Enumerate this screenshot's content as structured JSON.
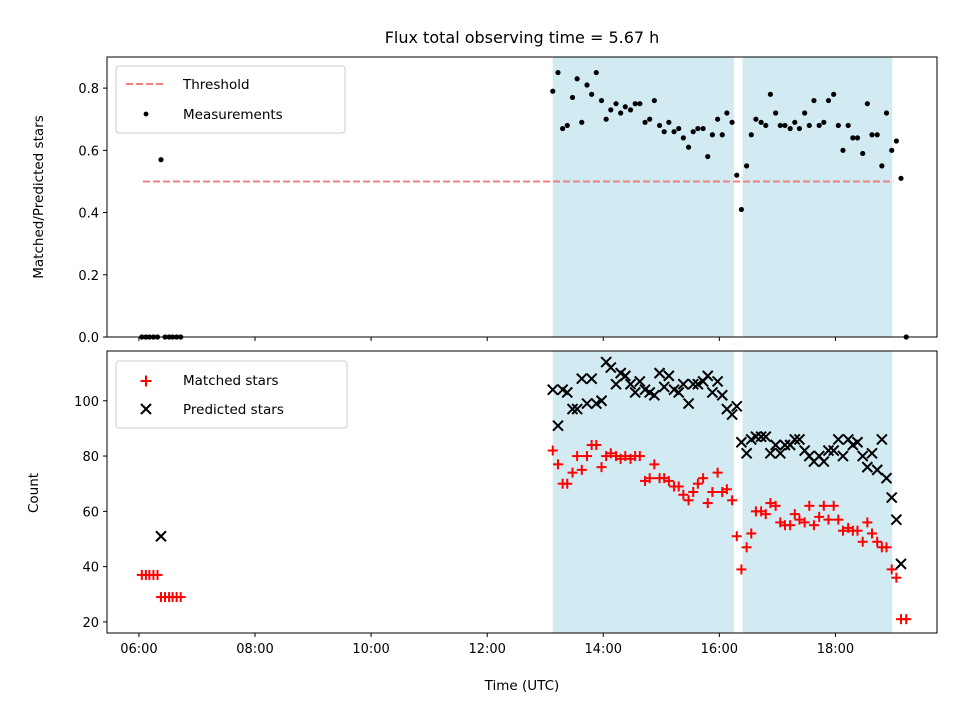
{
  "chart_data": [
    {
      "type": "scatter",
      "title": "Flux total observing time = 5.67 h",
      "xlabel": "",
      "ylabel": "Matched/Predicted stars",
      "xlim": [
        5.45,
        19.75
      ],
      "ylim": [
        0.0,
        0.9
      ],
      "x_ticks": [
        6,
        8,
        10,
        12,
        14,
        16,
        18
      ],
      "y_ticks": [
        0.0,
        0.2,
        0.4,
        0.6,
        0.8
      ],
      "y_tick_labels": [
        "0.0",
        "0.2",
        "0.4",
        "0.6",
        "0.8"
      ],
      "grid": false,
      "legend_position": "upper left",
      "shaded_intervals": [
        [
          13.13,
          16.25
        ],
        [
          16.4,
          18.98
        ]
      ],
      "shade_color": "#add8e6",
      "threshold": {
        "name": "Threshold",
        "value": 0.5,
        "x_range": [
          6.07,
          19.0
        ],
        "color": "#f08080"
      },
      "series": [
        {
          "name": "Measurements",
          "color": "#000000",
          "marker": "dot",
          "points": [
            [
              6.05,
              0.0
            ],
            [
              6.12,
              0.0
            ],
            [
              6.18,
              0.0
            ],
            [
              6.25,
              0.0
            ],
            [
              6.32,
              0.0
            ],
            [
              6.38,
              0.57
            ],
            [
              6.45,
              0.0
            ],
            [
              6.52,
              0.0
            ],
            [
              6.58,
              0.0
            ],
            [
              6.65,
              0.0
            ],
            [
              6.72,
              0.0
            ],
            [
              13.13,
              0.79
            ],
            [
              13.22,
              0.85
            ],
            [
              13.3,
              0.67
            ],
            [
              13.38,
              0.68
            ],
            [
              13.47,
              0.77
            ],
            [
              13.55,
              0.83
            ],
            [
              13.63,
              0.69
            ],
            [
              13.72,
              0.81
            ],
            [
              13.8,
              0.78
            ],
            [
              13.88,
              0.85
            ],
            [
              13.97,
              0.76
            ],
            [
              14.05,
              0.7
            ],
            [
              14.13,
              0.73
            ],
            [
              14.22,
              0.75
            ],
            [
              14.3,
              0.72
            ],
            [
              14.38,
              0.74
            ],
            [
              14.47,
              0.73
            ],
            [
              14.55,
              0.75
            ],
            [
              14.63,
              0.75
            ],
            [
              14.72,
              0.69
            ],
            [
              14.8,
              0.7
            ],
            [
              14.88,
              0.76
            ],
            [
              14.97,
              0.68
            ],
            [
              15.05,
              0.66
            ],
            [
              15.13,
              0.69
            ],
            [
              15.22,
              0.66
            ],
            [
              15.3,
              0.67
            ],
            [
              15.38,
              0.64
            ],
            [
              15.47,
              0.61
            ],
            [
              15.55,
              0.66
            ],
            [
              15.63,
              0.67
            ],
            [
              15.72,
              0.67
            ],
            [
              15.8,
              0.58
            ],
            [
              15.88,
              0.65
            ],
            [
              15.97,
              0.7
            ],
            [
              16.05,
              0.65
            ],
            [
              16.13,
              0.72
            ],
            [
              16.22,
              0.69
            ],
            [
              16.3,
              0.52
            ],
            [
              16.38,
              0.41
            ],
            [
              16.47,
              0.55
            ],
            [
              16.55,
              0.65
            ],
            [
              16.63,
              0.7
            ],
            [
              16.72,
              0.69
            ],
            [
              16.8,
              0.68
            ],
            [
              16.88,
              0.78
            ],
            [
              16.97,
              0.72
            ],
            [
              17.05,
              0.68
            ],
            [
              17.13,
              0.68
            ],
            [
              17.22,
              0.67
            ],
            [
              17.3,
              0.69
            ],
            [
              17.38,
              0.67
            ],
            [
              17.47,
              0.72
            ],
            [
              17.55,
              0.68
            ],
            [
              17.63,
              0.76
            ],
            [
              17.72,
              0.68
            ],
            [
              17.8,
              0.69
            ],
            [
              17.88,
              0.76
            ],
            [
              17.97,
              0.78
            ],
            [
              18.05,
              0.68
            ],
            [
              18.13,
              0.6
            ],
            [
              18.22,
              0.68
            ],
            [
              18.3,
              0.64
            ],
            [
              18.38,
              0.64
            ],
            [
              18.47,
              0.59
            ],
            [
              18.55,
              0.75
            ],
            [
              18.63,
              0.65
            ],
            [
              18.72,
              0.65
            ],
            [
              18.8,
              0.55
            ],
            [
              18.88,
              0.72
            ],
            [
              18.97,
              0.6
            ],
            [
              19.05,
              0.63
            ],
            [
              19.13,
              0.51
            ],
            [
              19.22,
              0.0
            ]
          ]
        }
      ]
    },
    {
      "type": "scatter",
      "title": "",
      "xlabel": "Time (UTC)",
      "ylabel": "Count",
      "xlim": [
        5.45,
        19.75
      ],
      "ylim": [
        16,
        118
      ],
      "x_ticks": [
        6,
        8,
        10,
        12,
        14,
        16,
        18
      ],
      "x_tick_labels": [
        "06:00",
        "08:00",
        "10:00",
        "12:00",
        "14:00",
        "16:00",
        "18:00"
      ],
      "y_ticks": [
        20,
        40,
        60,
        80,
        100
      ],
      "y_tick_labels": [
        "20",
        "40",
        "60",
        "80",
        "100"
      ],
      "grid": false,
      "legend_position": "upper left",
      "shaded_intervals": [
        [
          13.13,
          16.25
        ],
        [
          16.4,
          18.98
        ]
      ],
      "shade_color": "#add8e6",
      "series": [
        {
          "name": "Matched stars",
          "color": "#ff0000",
          "marker": "plus",
          "points": [
            [
              6.05,
              37
            ],
            [
              6.12,
              37
            ],
            [
              6.18,
              37
            ],
            [
              6.25,
              37
            ],
            [
              6.32,
              37
            ],
            [
              6.38,
              29
            ],
            [
              6.45,
              29
            ],
            [
              6.52,
              29
            ],
            [
              6.58,
              29
            ],
            [
              6.65,
              29
            ],
            [
              6.72,
              29
            ],
            [
              13.13,
              82
            ],
            [
              13.22,
              77
            ],
            [
              13.3,
              70
            ],
            [
              13.38,
              70
            ],
            [
              13.47,
              74
            ],
            [
              13.55,
              80
            ],
            [
              13.63,
              75
            ],
            [
              13.72,
              80
            ],
            [
              13.8,
              84
            ],
            [
              13.88,
              84
            ],
            [
              13.97,
              76
            ],
            [
              14.05,
              80
            ],
            [
              14.13,
              81
            ],
            [
              14.22,
              80
            ],
            [
              14.3,
              79
            ],
            [
              14.38,
              80
            ],
            [
              14.47,
              79
            ],
            [
              14.55,
              80
            ],
            [
              14.63,
              80
            ],
            [
              14.72,
              71
            ],
            [
              14.8,
              72
            ],
            [
              14.88,
              77
            ],
            [
              14.97,
              72
            ],
            [
              15.05,
              72
            ],
            [
              15.13,
              71
            ],
            [
              15.22,
              69
            ],
            [
              15.3,
              69
            ],
            [
              15.38,
              66
            ],
            [
              15.47,
              64
            ],
            [
              15.55,
              67
            ],
            [
              15.63,
              70
            ],
            [
              15.72,
              72
            ],
            [
              15.8,
              63
            ],
            [
              15.88,
              67
            ],
            [
              15.97,
              74
            ],
            [
              16.05,
              67
            ],
            [
              16.13,
              68
            ],
            [
              16.22,
              64
            ],
            [
              16.3,
              51
            ],
            [
              16.38,
              39
            ],
            [
              16.47,
              47
            ],
            [
              16.55,
              52
            ],
            [
              16.63,
              60
            ],
            [
              16.72,
              60
            ],
            [
              16.8,
              59
            ],
            [
              16.88,
              63
            ],
            [
              16.97,
              62
            ],
            [
              17.05,
              56
            ],
            [
              17.13,
              55
            ],
            [
              17.22,
              55
            ],
            [
              17.3,
              59
            ],
            [
              17.38,
              57
            ],
            [
              17.47,
              56
            ],
            [
              17.55,
              62
            ],
            [
              17.63,
              55
            ],
            [
              17.72,
              58
            ],
            [
              17.8,
              62
            ],
            [
              17.88,
              57
            ],
            [
              17.97,
              62
            ],
            [
              18.05,
              57
            ],
            [
              18.13,
              53
            ],
            [
              18.22,
              54
            ],
            [
              18.3,
              53
            ],
            [
              18.38,
              53
            ],
            [
              18.47,
              49
            ],
            [
              18.55,
              56
            ],
            [
              18.63,
              52
            ],
            [
              18.72,
              49
            ],
            [
              18.8,
              47
            ],
            [
              18.88,
              47
            ],
            [
              18.97,
              39
            ],
            [
              19.05,
              36
            ],
            [
              19.13,
              21
            ],
            [
              19.22,
              21
            ]
          ]
        },
        {
          "name": "Predicted stars",
          "color": "#000000",
          "marker": "x",
          "points": [
            [
              6.38,
              51
            ],
            [
              13.13,
              104
            ],
            [
              13.22,
              91
            ],
            [
              13.3,
              104
            ],
            [
              13.38,
              103
            ],
            [
              13.47,
              97
            ],
            [
              13.55,
              97
            ],
            [
              13.63,
              108
            ],
            [
              13.72,
              99
            ],
            [
              13.8,
              108
            ],
            [
              13.88,
              99
            ],
            [
              13.97,
              100
            ],
            [
              14.05,
              114
            ],
            [
              14.13,
              112
            ],
            [
              14.22,
              106
            ],
            [
              14.3,
              110
            ],
            [
              14.38,
              109
            ],
            [
              14.47,
              106
            ],
            [
              14.55,
              103
            ],
            [
              14.63,
              107
            ],
            [
              14.72,
              104
            ],
            [
              14.8,
              103
            ],
            [
              14.88,
              102
            ],
            [
              14.97,
              110
            ],
            [
              15.05,
              105
            ],
            [
              15.13,
              109
            ],
            [
              15.22,
              104
            ],
            [
              15.3,
              103
            ],
            [
              15.38,
              106
            ],
            [
              15.47,
              99
            ],
            [
              15.55,
              106
            ],
            [
              15.63,
              106
            ],
            [
              15.72,
              107
            ],
            [
              15.8,
              109
            ],
            [
              15.88,
              103
            ],
            [
              15.97,
              107
            ],
            [
              16.05,
              102
            ],
            [
              16.13,
              97
            ],
            [
              16.22,
              95
            ],
            [
              16.3,
              98
            ],
            [
              16.38,
              85
            ],
            [
              16.47,
              81
            ],
            [
              16.55,
              86
            ],
            [
              16.63,
              87
            ],
            [
              16.72,
              87
            ],
            [
              16.8,
              87
            ],
            [
              16.88,
              81
            ],
            [
              16.97,
              84
            ],
            [
              17.05,
              81
            ],
            [
              17.13,
              84
            ],
            [
              17.22,
              84
            ],
            [
              17.3,
              86
            ],
            [
              17.38,
              86
            ],
            [
              17.47,
              82
            ],
            [
              17.55,
              80
            ],
            [
              17.63,
              78
            ],
            [
              17.72,
              80
            ],
            [
              17.8,
              78
            ],
            [
              17.88,
              82
            ],
            [
              17.97,
              82
            ],
            [
              18.05,
              86
            ],
            [
              18.13,
              80
            ],
            [
              18.22,
              86
            ],
            [
              18.3,
              84
            ],
            [
              18.38,
              85
            ],
            [
              18.47,
              80
            ],
            [
              18.55,
              76
            ],
            [
              18.63,
              81
            ],
            [
              18.72,
              75
            ],
            [
              18.8,
              86
            ],
            [
              18.88,
              72
            ],
            [
              18.97,
              65
            ],
            [
              19.05,
              57
            ],
            [
              19.13,
              41
            ]
          ]
        }
      ]
    }
  ]
}
